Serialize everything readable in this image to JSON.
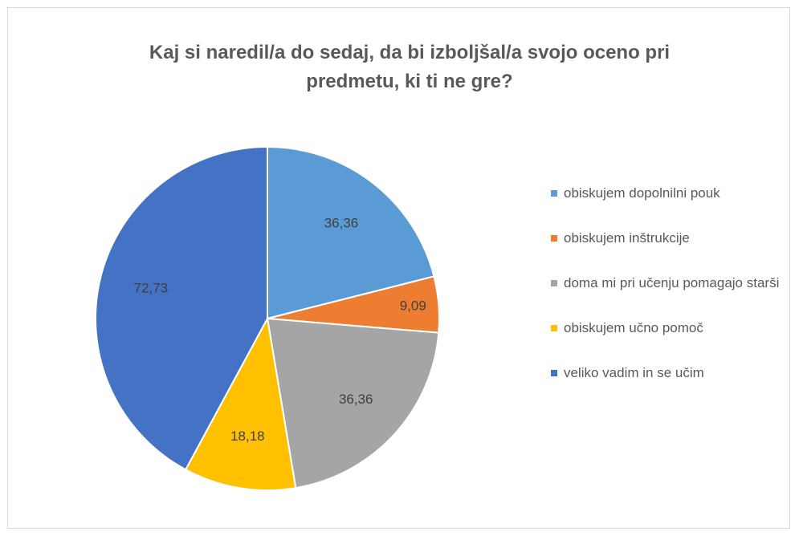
{
  "chart_data": {
    "type": "pie",
    "title": "Kaj si naredil/a do sedaj, da bi izboljšal/a svojo oceno pri predmetu, ki ti ne gre?",
    "categories": [
      "obiskujem dopolnilni pouk",
      "obiskujem inštrukcije",
      "doma mi pri učenju pomagajo starši",
      "obiskujem učno pomoč",
      "veliko vadim in se učim"
    ],
    "values": [
      36.36,
      9.09,
      36.36,
      18.18,
      72.73
    ],
    "value_labels": [
      "36,36",
      "9,09",
      "36,36",
      "18,18",
      "72,73"
    ],
    "colors": [
      "#5b9bd5",
      "#ed7d31",
      "#a5a5a5",
      "#ffc000",
      "#4472c4"
    ],
    "legend": "right"
  }
}
